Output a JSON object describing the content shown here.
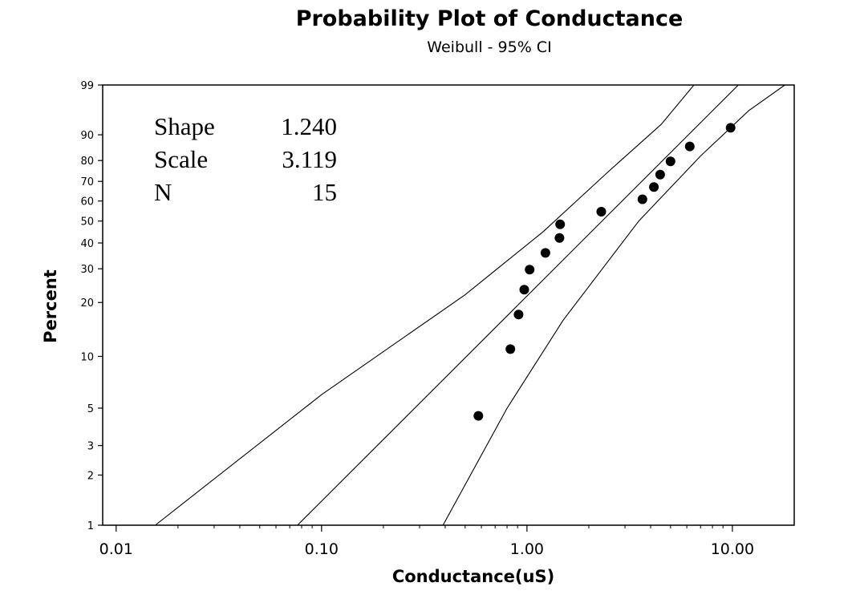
{
  "chart_data": {
    "type": "scatter",
    "title": "Probability Plot of Conductance",
    "subtitle": "Weibull - 95% CI",
    "xlabel": "Conductance(uS)",
    "ylabel": "Percent",
    "x_scale": "log",
    "y_scale": "weibull-probability",
    "xlim": [
      0.0086,
      20
    ],
    "ylim": [
      1,
      99
    ],
    "x_ticks": [
      0.01,
      0.1,
      1,
      10
    ],
    "x_tick_labels": [
      "0.01",
      "0.10",
      "1.00",
      "10.00"
    ],
    "y_ticks": [
      1,
      2,
      3,
      5,
      10,
      20,
      30,
      40,
      50,
      60,
      70,
      80,
      90,
      99
    ],
    "y_tick_labels": [
      "1",
      "2",
      "3",
      "5",
      "10",
      "20",
      "30",
      "40",
      "50",
      "60",
      "70",
      "80",
      "90",
      "99"
    ],
    "grid": false,
    "stats": {
      "rows": [
        {
          "label": "Shape",
          "value": "1.240"
        },
        {
          "label": "Scale",
          "value": "3.119"
        },
        {
          "label": "N",
          "value": "15"
        }
      ]
    },
    "points": [
      {
        "x": 0.58,
        "y": 4.5
      },
      {
        "x": 0.83,
        "y": 11.0
      },
      {
        "x": 0.91,
        "y": 17.2
      },
      {
        "x": 0.97,
        "y": 23.4
      },
      {
        "x": 1.03,
        "y": 29.7
      },
      {
        "x": 1.23,
        "y": 35.9
      },
      {
        "x": 1.44,
        "y": 42.2
      },
      {
        "x": 1.45,
        "y": 48.4
      },
      {
        "x": 2.3,
        "y": 54.6
      },
      {
        "x": 3.65,
        "y": 60.9
      },
      {
        "x": 4.15,
        "y": 67.1
      },
      {
        "x": 4.45,
        "y": 73.4
      },
      {
        "x": 5.0,
        "y": 79.6
      },
      {
        "x": 6.2,
        "y": 85.9
      },
      {
        "x": 9.8,
        "y": 92.1
      }
    ],
    "fit_line": {
      "shape": 1.24,
      "scale": 3.119
    },
    "ci_lines": {
      "upper": [
        {
          "x": 0.0155,
          "y": 1
        },
        {
          "x": 0.1,
          "y": 6
        },
        {
          "x": 0.5,
          "y": 22
        },
        {
          "x": 1.2,
          "y": 45
        },
        {
          "x": 2.5,
          "y": 75
        },
        {
          "x": 4.5,
          "y": 93
        },
        {
          "x": 6.5,
          "y": 99
        }
      ],
      "lower": [
        {
          "x": 0.39,
          "y": 1
        },
        {
          "x": 0.8,
          "y": 5
        },
        {
          "x": 1.5,
          "y": 16
        },
        {
          "x": 3.5,
          "y": 50
        },
        {
          "x": 7,
          "y": 82
        },
        {
          "x": 12,
          "y": 96
        },
        {
          "x": 18,
          "y": 99
        }
      ]
    }
  }
}
